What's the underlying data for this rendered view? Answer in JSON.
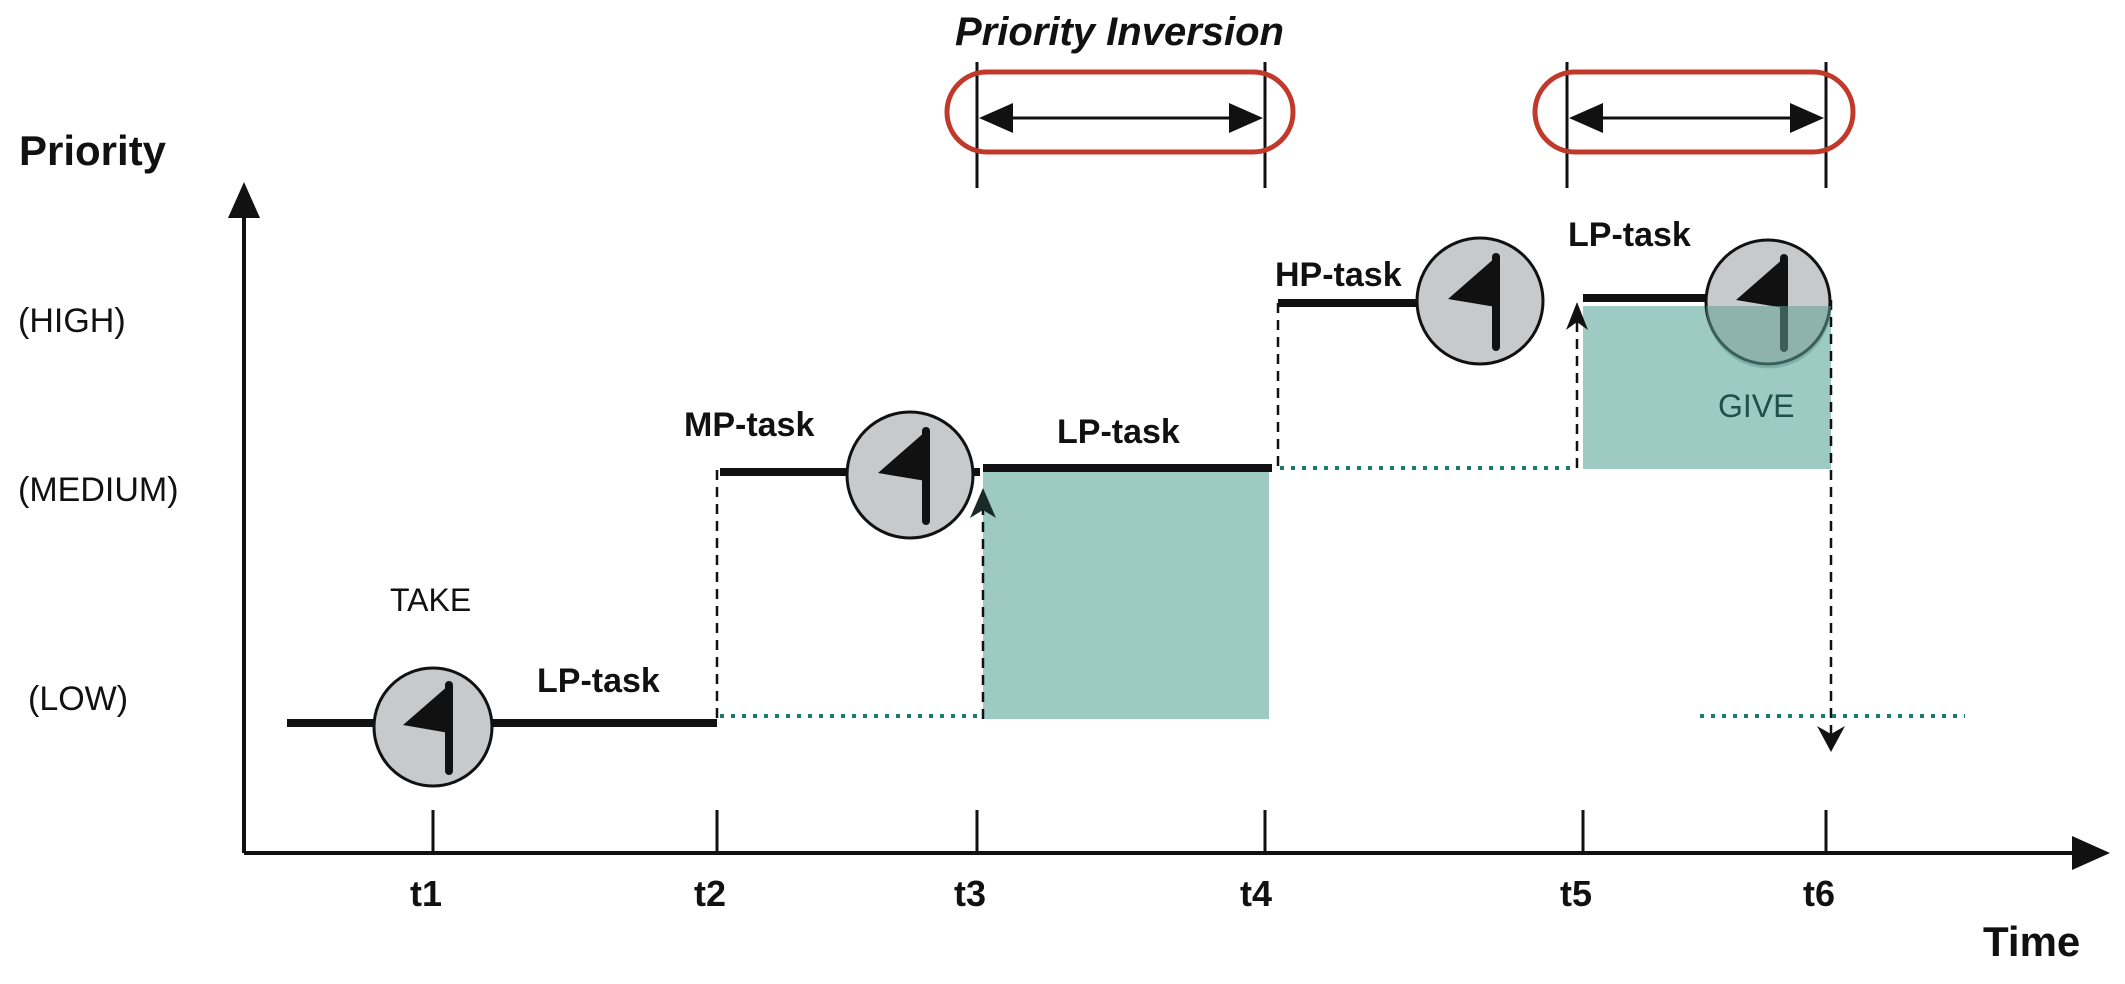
{
  "title": "Priority Inversion",
  "axes": {
    "y_label": "Priority",
    "x_label": "Time"
  },
  "levels": [
    "(HIGH)",
    "(MEDIUM)",
    "(LOW)"
  ],
  "ticks": [
    "t1",
    "t2",
    "t3",
    "t4",
    "t5",
    "t6"
  ],
  "tasks": {
    "lp_low": "LP-task",
    "mp": "MP-task",
    "lp_medium": "LP-task",
    "hp": "HP-task",
    "lp_high": "LP-task"
  },
  "events": {
    "take": "TAKE",
    "give": "GIVE"
  },
  "colors": {
    "inversion_fill": "#9dcbc3",
    "highlight_outline": "#c0392b",
    "waiting_dotted": "#1f7a6e",
    "semaphore_fill": "#c8c9cb"
  },
  "icons": [
    "flag-icon"
  ]
}
